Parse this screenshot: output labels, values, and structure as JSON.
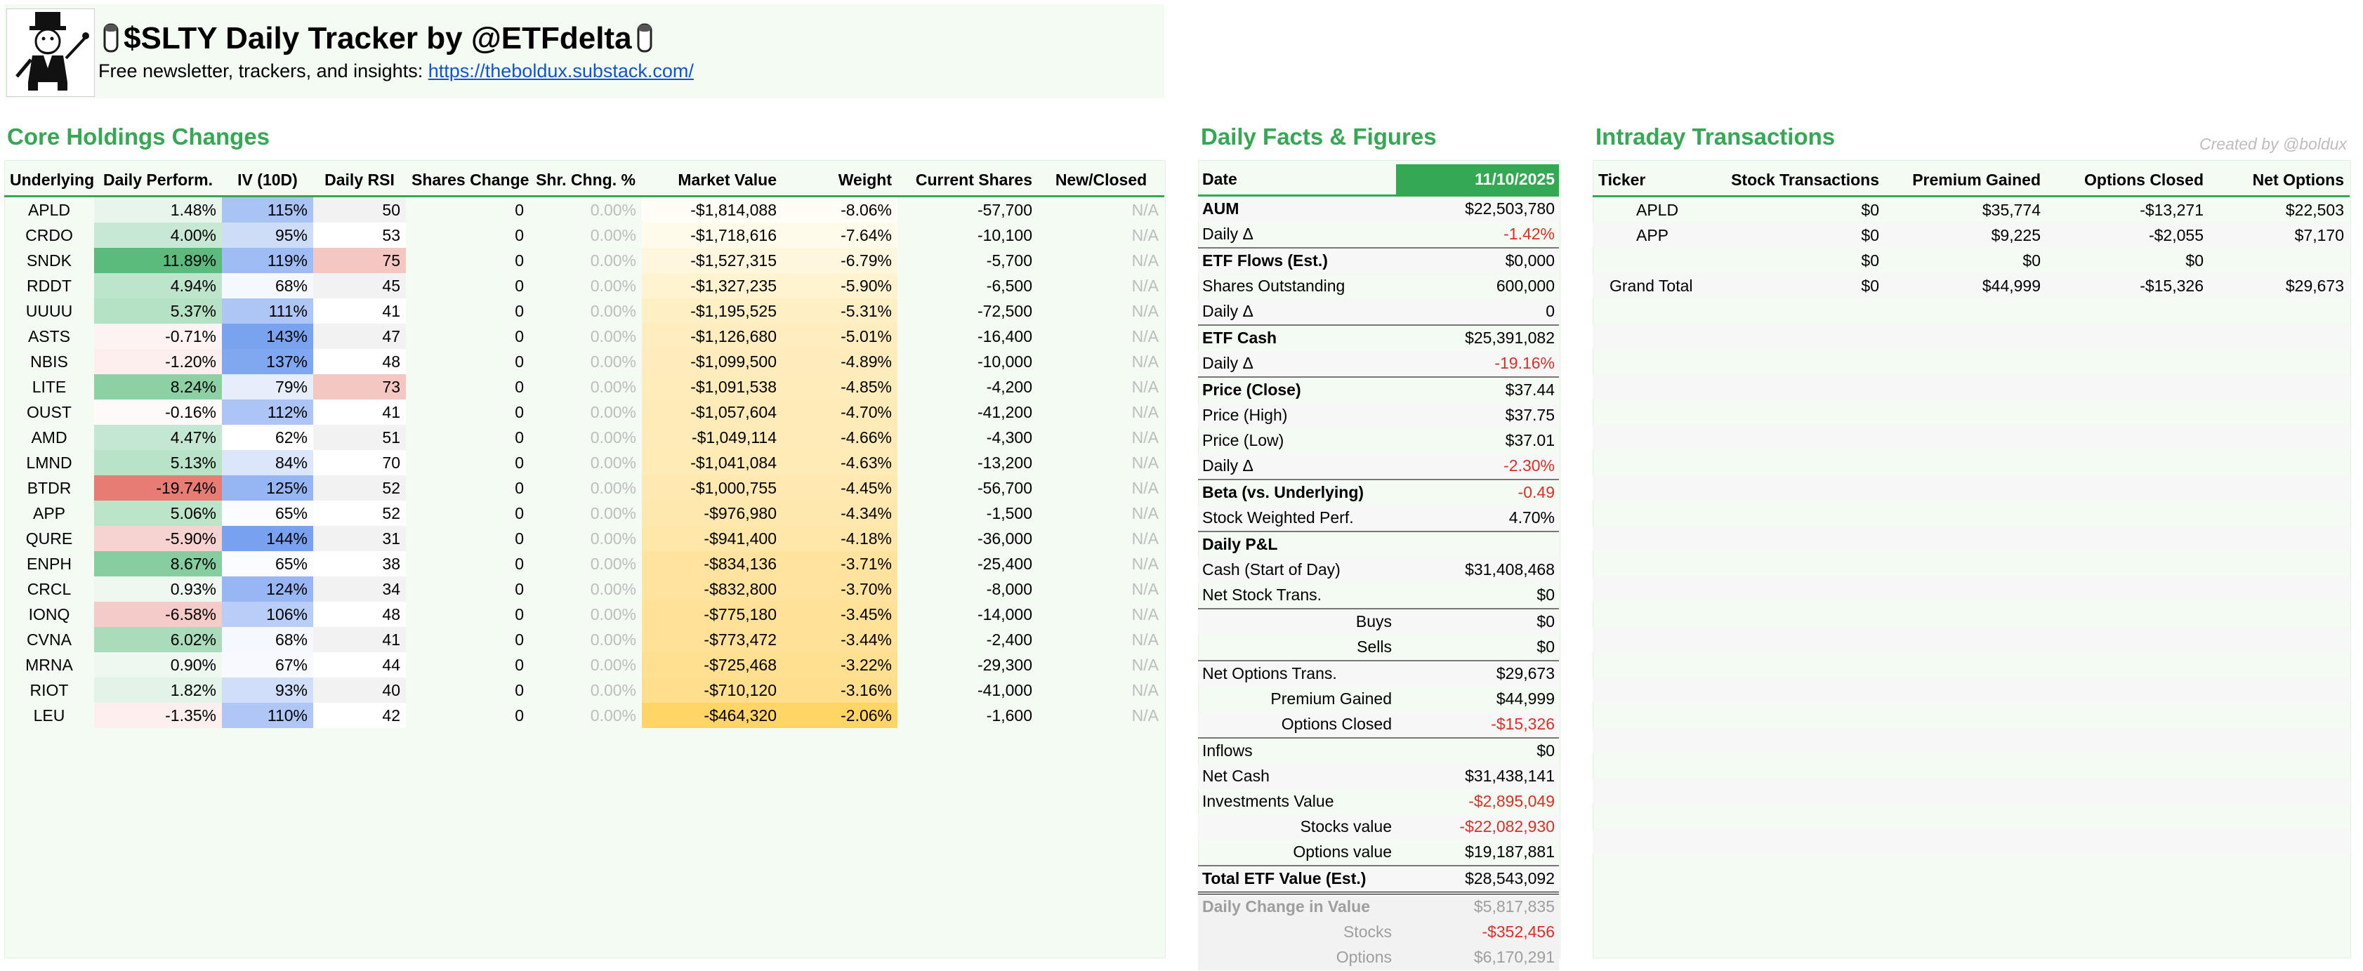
{
  "header": {
    "title": "$SLTY Daily Tracker by @ETFdelta",
    "subtitle_text": "Free newsletter, trackers, and insights: ",
    "link_text": "https://theboldux.substack.com/"
  },
  "core": {
    "title": "Core Holdings Changes",
    "columns": [
      "Underlying",
      "Daily Perform.",
      "IV (10D)",
      "Daily RSI",
      "Shares Change",
      "Shr. Chng. %",
      "Market Value",
      "Weight",
      "Current Shares",
      "New/Closed"
    ],
    "rows": [
      {
        "t": "APLD",
        "perf": "1.48%",
        "iv": "115%",
        "rsi": "50",
        "sc": "0",
        "scp": "0.00%",
        "mv": "-$1,814,088",
        "w": "-8.06%",
        "cs": "-57,700",
        "nc": "N/A",
        "perf_bg": "#e8f5ec",
        "iv_bg": "#a9c3f5",
        "rsi_bg": "#f2f2f2",
        "mv_bg": "#fffdf5"
      },
      {
        "t": "CRDO",
        "perf": "4.00%",
        "iv": "95%",
        "rsi": "53",
        "sc": "0",
        "scp": "0.00%",
        "mv": "-$1,718,616",
        "w": "-7.64%",
        "cs": "-10,100",
        "nc": "N/A",
        "perf_bg": "#c7e9d3",
        "iv_bg": "#cddcf7",
        "rsi_bg": "#ffffff",
        "mv_bg": "#fffbea"
      },
      {
        "t": "SNDK",
        "perf": "11.89%",
        "iv": "119%",
        "rsi": "75",
        "sc": "0",
        "scp": "0.00%",
        "mv": "-$1,527,315",
        "w": "-6.79%",
        "cs": "-5,700",
        "nc": "N/A",
        "perf_bg": "#5bbb7d",
        "iv_bg": "#a0bcf4",
        "rsi_bg": "#f4c7c3",
        "mv_bg": "#fff7dd"
      },
      {
        "t": "RDDT",
        "perf": "4.94%",
        "iv": "68%",
        "rsi": "45",
        "sc": "0",
        "scp": "0.00%",
        "mv": "-$1,327,235",
        "w": "-5.90%",
        "cs": "-6,500",
        "nc": "N/A",
        "perf_bg": "#bde5cb",
        "iv_bg": "#f5f8fe",
        "rsi_bg": "#f2f2f2",
        "mv_bg": "#fff3d0"
      },
      {
        "t": "UUUU",
        "perf": "5.37%",
        "iv": "111%",
        "rsi": "41",
        "sc": "0",
        "scp": "0.00%",
        "mv": "-$1,195,525",
        "w": "-5.31%",
        "cs": "-72,500",
        "nc": "N/A",
        "perf_bg": "#b5e2c5",
        "iv_bg": "#aec6f6",
        "rsi_bg": "#ffffff",
        "mv_bg": "#ffefc5"
      },
      {
        "t": "ASTS",
        "perf": "-0.71%",
        "iv": "143%",
        "rsi": "47",
        "sc": "0",
        "scp": "0.00%",
        "mv": "-$1,126,680",
        "w": "-5.01%",
        "cs": "-16,400",
        "nc": "N/A",
        "perf_bg": "#fdf3f2",
        "iv_bg": "#7aa3ef",
        "rsi_bg": "#f2f2f2",
        "mv_bg": "#ffedbf"
      },
      {
        "t": "NBIS",
        "perf": "-1.20%",
        "iv": "137%",
        "rsi": "48",
        "sc": "0",
        "scp": "0.00%",
        "mv": "-$1,099,500",
        "w": "-4.89%",
        "cs": "-10,000",
        "nc": "N/A",
        "perf_bg": "#fcefed",
        "iv_bg": "#80a8f0",
        "rsi_bg": "#ffffff",
        "mv_bg": "#ffecbc"
      },
      {
        "t": "LITE",
        "perf": "8.24%",
        "iv": "79%",
        "rsi": "73",
        "sc": "0",
        "scp": "0.00%",
        "mv": "-$1,091,538",
        "w": "-4.85%",
        "cs": "-4,200",
        "nc": "N/A",
        "perf_bg": "#8cd0a4",
        "iv_bg": "#e6eefc",
        "rsi_bg": "#f4c7c3",
        "mv_bg": "#ffecbb"
      },
      {
        "t": "OUST",
        "perf": "-0.16%",
        "iv": "112%",
        "rsi": "41",
        "sc": "0",
        "scp": "0.00%",
        "mv": "-$1,057,604",
        "w": "-4.70%",
        "cs": "-41,200",
        "nc": "N/A",
        "perf_bg": "#fefafa",
        "iv_bg": "#adc5f6",
        "rsi_bg": "#ffffff",
        "mv_bg": "#ffebb8"
      },
      {
        "t": "AMD",
        "perf": "4.47%",
        "iv": "62%",
        "rsi": "51",
        "sc": "0",
        "scp": "0.00%",
        "mv": "-$1,049,114",
        "w": "-4.66%",
        "cs": "-4,300",
        "nc": "N/A",
        "perf_bg": "#c3e7d0",
        "iv_bg": "#ffffff",
        "rsi_bg": "#f2f2f2",
        "mv_bg": "#ffebb7"
      },
      {
        "t": "LMND",
        "perf": "5.13%",
        "iv": "84%",
        "rsi": "70",
        "sc": "0",
        "scp": "0.00%",
        "mv": "-$1,041,084",
        "w": "-4.63%",
        "cs": "-13,200",
        "nc": "N/A",
        "perf_bg": "#b9e3c8",
        "iv_bg": "#dce6fa",
        "rsi_bg": "#ffffff",
        "mv_bg": "#ffebb6"
      },
      {
        "t": "BTDR",
        "perf": "-19.74%",
        "iv": "125%",
        "rsi": "52",
        "sc": "0",
        "scp": "0.00%",
        "mv": "-$1,000,755",
        "w": "-4.45%",
        "cs": "-56,700",
        "nc": "N/A",
        "perf_bg": "#e67c73",
        "iv_bg": "#96b5f3",
        "rsi_bg": "#f2f2f2",
        "mv_bg": "#ffe9b1"
      },
      {
        "t": "APP",
        "perf": "5.06%",
        "iv": "65%",
        "rsi": "52",
        "sc": "0",
        "scp": "0.00%",
        "mv": "-$976,980",
        "w": "-4.34%",
        "cs": "-1,500",
        "nc": "N/A",
        "perf_bg": "#bbe4c9",
        "iv_bg": "#fafcff",
        "rsi_bg": "#ffffff",
        "mv_bg": "#ffe8ae"
      },
      {
        "t": "QURE",
        "perf": "-5.90%",
        "iv": "144%",
        "rsi": "31",
        "sc": "0",
        "scp": "0.00%",
        "mv": "-$941,400",
        "w": "-4.18%",
        "cs": "-36,000",
        "nc": "N/A",
        "perf_bg": "#f6d3d0",
        "iv_bg": "#78a2ef",
        "rsi_bg": "#f2f2f2",
        "mv_bg": "#ffe7aa"
      },
      {
        "t": "ENPH",
        "perf": "8.67%",
        "iv": "65%",
        "rsi": "38",
        "sc": "0",
        "scp": "0.00%",
        "mv": "-$834,136",
        "w": "-3.71%",
        "cs": "-25,400",
        "nc": "N/A",
        "perf_bg": "#86cda0",
        "iv_bg": "#fafcff",
        "rsi_bg": "#ffffff",
        "mv_bg": "#ffe39e"
      },
      {
        "t": "CRCL",
        "perf": "0.93%",
        "iv": "124%",
        "rsi": "34",
        "sc": "0",
        "scp": "0.00%",
        "mv": "-$832,800",
        "w": "-3.70%",
        "cs": "-8,000",
        "nc": "N/A",
        "perf_bg": "#eef8f1",
        "iv_bg": "#98b6f3",
        "rsi_bg": "#f2f2f2",
        "mv_bg": "#ffe39e"
      },
      {
        "t": "IONQ",
        "perf": "-6.58%",
        "iv": "106%",
        "rsi": "48",
        "sc": "0",
        "scp": "0.00%",
        "mv": "-$775,180",
        "w": "-3.45%",
        "cs": "-14,000",
        "nc": "N/A",
        "perf_bg": "#f4cbc8",
        "iv_bg": "#b8cdf7",
        "rsi_bg": "#ffffff",
        "mv_bg": "#ffe197"
      },
      {
        "t": "CVNA",
        "perf": "6.02%",
        "iv": "68%",
        "rsi": "41",
        "sc": "0",
        "scp": "0.00%",
        "mv": "-$773,472",
        "w": "-3.44%",
        "cs": "-2,400",
        "nc": "N/A",
        "perf_bg": "#aadcbc",
        "iv_bg": "#f5f8fe",
        "rsi_bg": "#f2f2f2",
        "mv_bg": "#ffe197"
      },
      {
        "t": "MRNA",
        "perf": "0.90%",
        "iv": "67%",
        "rsi": "44",
        "sc": "0",
        "scp": "0.00%",
        "mv": "-$725,468",
        "w": "-3.22%",
        "cs": "-29,300",
        "nc": "N/A",
        "perf_bg": "#eef8f1",
        "iv_bg": "#f7f9fe",
        "rsi_bg": "#ffffff",
        "mv_bg": "#ffdf90"
      },
      {
        "t": "RIOT",
        "perf": "1.82%",
        "iv": "93%",
        "rsi": "40",
        "sc": "0",
        "scp": "0.00%",
        "mv": "-$710,120",
        "w": "-3.16%",
        "cs": "-41,000",
        "nc": "N/A",
        "perf_bg": "#e3f3e8",
        "iv_bg": "#d0def9",
        "rsi_bg": "#f2f2f2",
        "mv_bg": "#ffdf8e"
      },
      {
        "t": "LEU",
        "perf": "-1.35%",
        "iv": "110%",
        "rsi": "42",
        "sc": "0",
        "scp": "0.00%",
        "mv": "-$464,320",
        "w": "-2.06%",
        "cs": "-1,600",
        "nc": "N/A",
        "perf_bg": "#fcefee",
        "iv_bg": "#b0c7f6",
        "rsi_bg": "#ffffff",
        "mv_bg": "#ffd666"
      }
    ]
  },
  "facts": {
    "title": "Daily Facts & Figures",
    "rows": [
      {
        "label": "Date",
        "value": "11/10/2025",
        "style": "head"
      },
      {
        "label": "AUM",
        "value": "$22,503,780",
        "style": "bold"
      },
      {
        "label": "Daily Δ",
        "value": "-1.42%",
        "neg": true
      },
      {
        "label": "ETF Flows (Est.)",
        "value": "$0,000",
        "style": "bold sep"
      },
      {
        "label": "Shares Outstanding",
        "value": "600,000"
      },
      {
        "label": "Daily Δ",
        "value": "0"
      },
      {
        "label": "ETF Cash",
        "value": "$25,391,082",
        "style": "bold sep"
      },
      {
        "label": "Daily Δ",
        "value": "-19.16%",
        "neg": true
      },
      {
        "label": "Price (Close)",
        "value": "$37.44",
        "style": "bold sep"
      },
      {
        "label": "Price (High)",
        "value": "$37.75"
      },
      {
        "label": "Price (Low)",
        "value": "$37.01"
      },
      {
        "label": "Daily Δ",
        "value": "-2.30%",
        "neg": true
      },
      {
        "label": "Beta (vs. Underlying)",
        "value": "-0.49",
        "neg": true,
        "style": "bold sep"
      },
      {
        "label": "Stock Weighted Perf.",
        "value": "4.70%"
      },
      {
        "label": "Daily P&L",
        "value": "",
        "style": "bold sep"
      },
      {
        "label": "Cash (Start of Day)",
        "value": "$31,408,468"
      },
      {
        "label": "Net Stock Trans.",
        "value": "$0"
      },
      {
        "label": "Buys",
        "value": "$0",
        "indent": true,
        "style": "sep"
      },
      {
        "label": "Sells",
        "value": "$0",
        "indent": true
      },
      {
        "label": "Net Options Trans.",
        "value": "$29,673",
        "style": "sep"
      },
      {
        "label": "Premium Gained",
        "value": "$44,999",
        "indent": true
      },
      {
        "label": "Options Closed",
        "value": "-$15,326",
        "indent": true,
        "neg": true
      },
      {
        "label": "Inflows",
        "value": "$0",
        "style": "sep"
      },
      {
        "label": "Net Cash",
        "value": "$31,438,141"
      },
      {
        "label": "Investments Value",
        "value": "-$2,895,049",
        "neg": true
      },
      {
        "label": "Stocks value",
        "value": "-$22,082,930",
        "indent": true,
        "neg": true
      },
      {
        "label": "Options value",
        "value": "$19,187,881",
        "indent": true
      },
      {
        "label": "Total ETF Value (Est.)",
        "value": "$28,543,092",
        "style": "bold sep dbl"
      },
      {
        "label": "Daily Change in Value",
        "value": "$5,817,835",
        "style": "bold dim"
      },
      {
        "label": "Stocks",
        "value": "-$352,456",
        "indent": true,
        "neg": true,
        "style": "dim"
      },
      {
        "label": "Options",
        "value": "$6,170,291",
        "indent": true,
        "style": "dim"
      }
    ]
  },
  "intraday": {
    "title": "Intraday Transactions",
    "credit": "Created by @boldux",
    "columns": [
      "Ticker",
      "Stock Transactions",
      "Premium Gained",
      "Options Closed",
      "Net Options"
    ],
    "rows": [
      {
        "t": "APLD",
        "st": "$0",
        "pg": "$35,774",
        "oc": "-$13,271",
        "no": "$22,503"
      },
      {
        "t": "APP",
        "st": "$0",
        "pg": "$9,225",
        "oc": "-$2,055",
        "no": "$7,170"
      },
      {
        "t": "",
        "st": "$0",
        "pg": "$0",
        "oc": "$0",
        "no": ""
      },
      {
        "t": "Grand Total",
        "st": "$0",
        "pg": "$44,999",
        "oc": "-$15,326",
        "no": "$29,673"
      }
    ],
    "empty_rows": 23
  }
}
